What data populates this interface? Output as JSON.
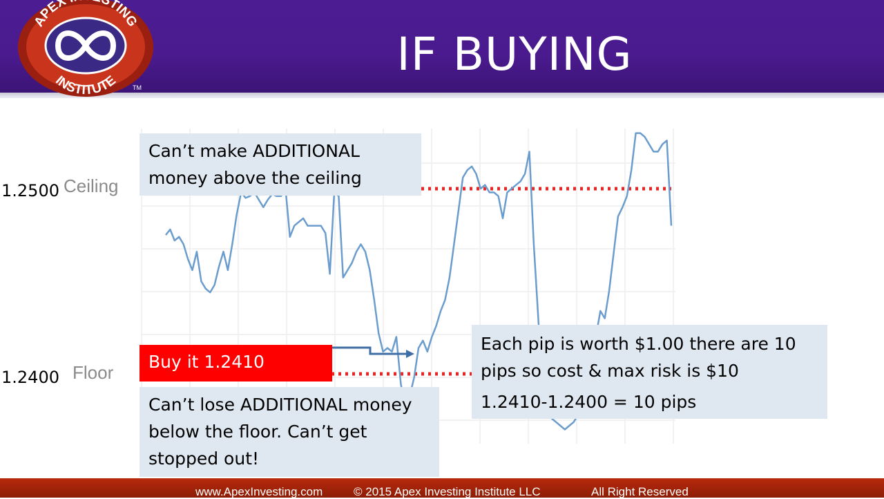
{
  "slide": {
    "title": "IF BUYING"
  },
  "logo": {
    "text_top": "APEX INVESTING",
    "text_bottom": "INSTITUTE",
    "trademark": "TM"
  },
  "levels": {
    "ceiling_value": "1.2500",
    "ceiling_label": "Ceiling",
    "floor_value": "1.2400",
    "floor_label": "Floor"
  },
  "callouts": {
    "ceiling_note": [
      "Can’t make ADDITIONAL",
      "money above the ceiling"
    ],
    "buy_label": "Buy it 1.2410",
    "floor_note": [
      "Can’t lose ADDITIONAL money",
      "below the floor. Can’t get",
      "stopped out!"
    ],
    "pip_note": [
      "Each pip is worth $1.00 there are 10",
      "pips so cost & max risk is $10"
    ],
    "pip_calc": "1.2410-1.2400 = 10 pips"
  },
  "footer": {
    "website": "www.ApexInvesting.com",
    "copyright": "©  2015 Apex Investing Institute LLC",
    "rights": "All Right Reserved"
  },
  "colors": {
    "header": "#4a1a8e",
    "price_line": "#6a9ccd",
    "level_dots": "#e32626",
    "callout_bg": "#dfe8f1",
    "buy_box": "#ff0000",
    "footer": "#a52509"
  },
  "chart_data": {
    "type": "line",
    "x": [
      0,
      1,
      2,
      3,
      4,
      5,
      6,
      7,
      8,
      9,
      10,
      11,
      12,
      13,
      14,
      15,
      16,
      17,
      18,
      19,
      20,
      21,
      22,
      23,
      24,
      25,
      26,
      27,
      28,
      29,
      30,
      31,
      32,
      33,
      34,
      35,
      36,
      37,
      38,
      39,
      40,
      41,
      42,
      43,
      44,
      45,
      46,
      47,
      48,
      49,
      50,
      51,
      52,
      53,
      54,
      55,
      56,
      57,
      58,
      59,
      60,
      61,
      62,
      63,
      64,
      65,
      66,
      67,
      68,
      69,
      70,
      71,
      72,
      73,
      74,
      75,
      76,
      77,
      78,
      79,
      80,
      81,
      82,
      83,
      84,
      85,
      86,
      87,
      88,
      89,
      90,
      91,
      92,
      93,
      94,
      95,
      96,
      97,
      98,
      99,
      100,
      101,
      102,
      103,
      104,
      105,
      106,
      107,
      108,
      109,
      110,
      111,
      112,
      113,
      114
    ],
    "values": [
      1.2475,
      1.2478,
      1.2472,
      1.2474,
      1.247,
      1.2462,
      1.2456,
      1.2466,
      1.245,
      1.2446,
      1.2444,
      1.2448,
      1.2458,
      1.2466,
      1.2456,
      1.247,
      1.2486,
      1.2498,
      1.2495,
      1.2496,
      1.2498,
      1.2494,
      1.249,
      1.2494,
      1.2497,
      1.2496,
      1.2496,
      1.25,
      1.2474,
      1.248,
      1.2482,
      1.2484,
      1.248,
      1.248,
      1.248,
      1.248,
      1.2476,
      1.2454,
      1.2498,
      1.2496,
      1.2452,
      1.2456,
      1.246,
      1.2466,
      1.247,
      1.2466,
      1.2456,
      1.244,
      1.2422,
      1.2412,
      1.2414,
      1.2412,
      1.242,
      1.2395,
      1.238,
      1.2388,
      1.2398,
      1.2414,
      1.2418,
      1.2412,
      1.242,
      1.2426,
      1.2434,
      1.244,
      1.2452,
      1.247,
      1.2488,
      1.2506,
      1.251,
      1.2512,
      1.2508,
      1.25,
      1.2502,
      1.2498,
      1.2498,
      1.2496,
      1.2484,
      1.2498,
      1.25,
      1.2502,
      1.2504,
      1.2508,
      1.252,
      1.247,
      1.243,
      1.239,
      1.238,
      1.2376,
      1.2374,
      1.2372,
      1.237,
      1.2372,
      1.2374,
      1.2378,
      1.238,
      1.2388,
      1.241,
      1.242,
      1.2434,
      1.243,
      1.2445,
      1.2465,
      1.2485,
      1.249,
      1.2496,
      1.251,
      1.253,
      1.253,
      1.2528,
      1.2524,
      1.252,
      1.252,
      1.2524,
      1.2526,
      1.248
    ],
    "levels": [
      {
        "name": "Ceiling",
        "value": 1.25
      },
      {
        "name": "Floor",
        "value": 1.24
      }
    ],
    "entry": 1.241,
    "ylim": [
      1.2365,
      1.2535
    ],
    "grid": true,
    "title": "",
    "xlabel": "",
    "ylabel": ""
  }
}
